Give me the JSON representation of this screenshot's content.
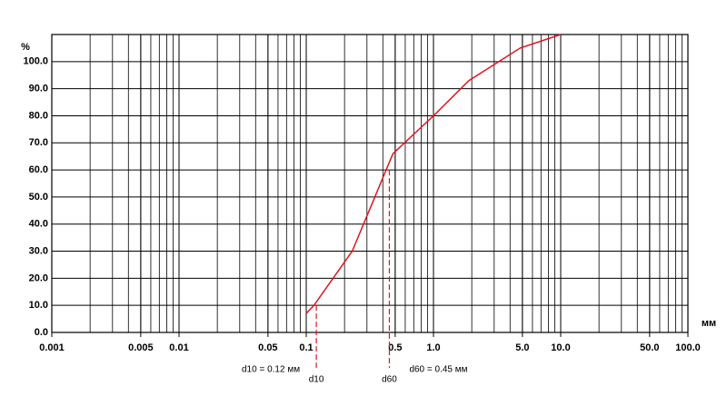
{
  "chart_data": {
    "type": "line",
    "y_label": "%",
    "x_label": "мм",
    "log_x": true,
    "grid": true,
    "color": "#e0141e",
    "x": [
      0.1,
      0.115,
      0.23,
      0.48,
      1.0,
      1.9,
      4.8,
      10.0
    ],
    "values": [
      7,
      10,
      30,
      66,
      80,
      93,
      105,
      110
    ],
    "xlim": [
      0.001,
      100
    ],
    "ylim": [
      0,
      110
    ],
    "xticks": [
      0.001,
      0.005,
      0.01,
      0.05,
      0.1,
      0.5,
      {
        "value": 1,
        "label": "1.0"
      },
      {
        "value": 5,
        "label": "5.0"
      },
      {
        "value": 10,
        "label": "10.0"
      },
      {
        "value": 50,
        "label": "50.0"
      },
      {
        "value": 100,
        "label": "100.0"
      }
    ],
    "yticks": [
      {
        "value": 0,
        "label": "0.0"
      },
      {
        "value": 10,
        "label": "10.0"
      },
      {
        "value": 20,
        "label": "20.0"
      },
      {
        "value": 30,
        "label": "30.0"
      },
      {
        "value": 40,
        "label": "40.0"
      },
      {
        "value": 50,
        "label": "50.0"
      },
      {
        "value": 60,
        "label": "60.0"
      },
      {
        "value": 70,
        "label": "70.0"
      },
      {
        "value": 80,
        "label": "80.0"
      },
      {
        "value": 90,
        "label": "90.0"
      },
      {
        "value": 100,
        "label": "100.0"
      }
    ],
    "annotations": [
      {
        "x": 0.12,
        "y": 10,
        "label": "d10",
        "note": "d10 = 0.12 мм"
      },
      {
        "x": 0.45,
        "y": 60,
        "label": "d60",
        "note": "d60 = 0.45 мм"
      }
    ]
  }
}
